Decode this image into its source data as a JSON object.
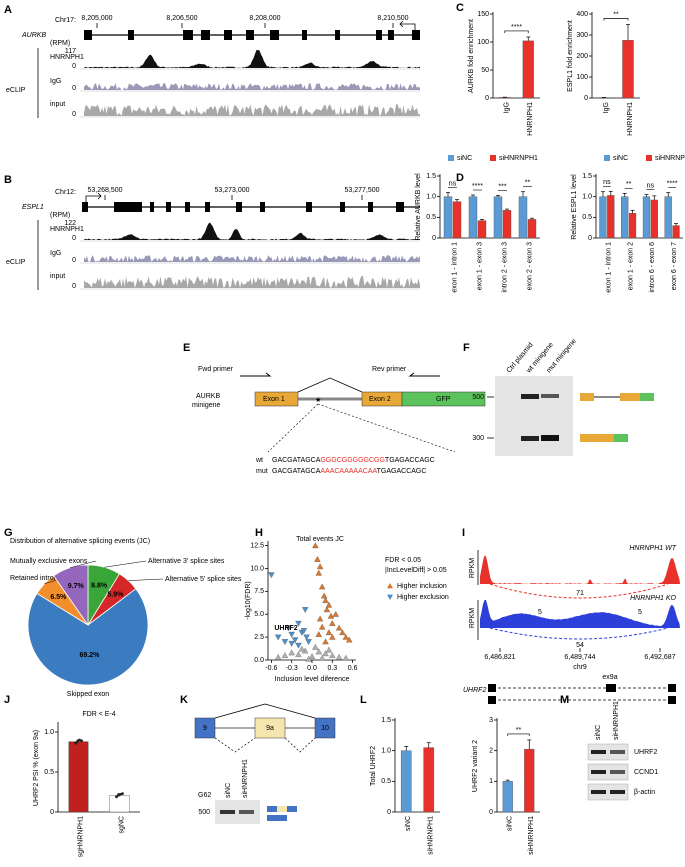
{
  "labels": {
    "a": "A",
    "b": "B",
    "c": "C",
    "d": "D",
    "e": "E",
    "f": "F",
    "g": "G",
    "h": "H",
    "i": "I",
    "j": "J",
    "k": "K",
    "l": "L",
    "m": "M"
  },
  "panel_a": {
    "chrom": "Chr17:",
    "coords": [
      "8,205,000",
      "8,206,500",
      "8,208,000",
      "8,210,500"
    ],
    "gene": "AURKB",
    "unit": "(RPM)",
    "max": "117",
    "zero": "0",
    "group": "eCLIP",
    "tracks": [
      "HNRNPH1",
      "IgG",
      "input"
    ]
  },
  "panel_b": {
    "chrom": "Chr12:",
    "coords": [
      "53,268,500",
      "53,273,000",
      "53,277,500"
    ],
    "gene": "ESPL1",
    "unit": "(RPM)",
    "max": "122",
    "zero": "0",
    "group": "eCLIP",
    "tracks": [
      "HNRNPH1",
      "IgG",
      "input"
    ]
  },
  "panel_e": {
    "fwd": "Fwd primer",
    "rev": "Rev primer",
    "label_lines": [
      "AURKB",
      "minigene"
    ],
    "exons": [
      "Exon 1",
      "Exon 2",
      "GFP"
    ],
    "wt": "wt",
    "mut": "mut",
    "wt_seq": [
      "GACGATAGCA",
      "GGGCGGGGGCGG",
      "TGAGACCAGC"
    ],
    "mut_seq": [
      "GACGATAGCA",
      "AAACAAAAACAA",
      "TGAGACCAGC"
    ]
  },
  "panel_f": {
    "lanes": [
      "Ctrl plasmid",
      "wt minigene",
      "mut minigene"
    ],
    "markers": [
      "500",
      "300"
    ]
  },
  "panel_i": {
    "unit": "RPKM",
    "wt": "HNRNPH1 WT",
    "ko": "HNRNPH1 KO",
    "wt_junction": "71",
    "ko_junctions": [
      "5",
      "5",
      "54"
    ],
    "coords": [
      "6,486,821",
      "6,489,744",
      "6,492,687"
    ],
    "chrom": "chr9",
    "exon": "ex9a",
    "gene": "UHRF2"
  },
  "panel_k": {
    "exons": [
      "9",
      "9a",
      "10"
    ],
    "cell": "G62",
    "marker": "500",
    "lanes": [
      "siNC",
      "siHNRNPH1"
    ]
  },
  "panel_m": {
    "lanes": [
      "siNC",
      "siHNRNPH1"
    ],
    "proteins": [
      "UHRF2",
      "CCND1",
      "β-actin"
    ]
  },
  "chart_data": [
    {
      "type": "bar",
      "ylabel": "AURKB fold enrichment",
      "categories": [
        "IgG",
        "HNRNPH1"
      ],
      "series": [
        {
          "values": [
            1,
            102
          ],
          "errors": [
            0.5,
            7
          ],
          "colors": [
            "#e8312a",
            "#e8312a"
          ]
        }
      ],
      "significance": [
        "****"
      ],
      "ylim": [
        0,
        150
      ],
      "yticks": [
        0,
        50,
        100,
        150
      ]
    },
    {
      "type": "bar",
      "ylabel": "ESPL1 fold enrichment",
      "categories": [
        "IgG",
        "HNRNPH1"
      ],
      "series": [
        {
          "values": [
            2,
            275
          ],
          "errors": [
            1,
            75
          ],
          "colors": [
            "#e8312a",
            "#e8312a"
          ]
        }
      ],
      "significance": [
        "**"
      ],
      "ylim": [
        0,
        400
      ],
      "yticks": [
        0,
        100,
        200,
        300,
        400
      ]
    },
    {
      "type": "bar",
      "ylabel": "Relative AURKB level",
      "categories": [
        "exon 1 - intron 1",
        "exon 1 - exon 3",
        "intron 2 - exon 3",
        "exon 2 - exon 3"
      ],
      "series": [
        {
          "name": "siNC",
          "color": "#5b9bd5",
          "values": [
            1,
            1,
            1,
            1
          ],
          "errors": [
            0.1,
            0.04,
            0.03,
            0.12
          ]
        },
        {
          "name": "siHNRNPH1",
          "color": "#e8312a",
          "values": [
            0.88,
            0.42,
            0.67,
            0.45
          ],
          "errors": [
            0.05,
            0.03,
            0.03,
            0.03
          ]
        }
      ],
      "significance": [
        "ns",
        "****",
        "***",
        "**"
      ],
      "ylim": [
        0,
        1.5
      ],
      "yticks": [
        0,
        0.5,
        {
          "value": 1,
          "label": "1.0"
        },
        1.5
      ]
    },
    {
      "type": "bar",
      "ylabel": "Relative ESPL1 level",
      "categories": [
        "exon 1 - intron 1",
        "exon 1 - exon 2",
        "intron 6 - exon 6",
        "exon 6 - exon 7"
      ],
      "series": [
        {
          "name": "siNC",
          "color": "#5b9bd5",
          "values": [
            1,
            1,
            1,
            1
          ],
          "errors": [
            0.12,
            0.08,
            0.05,
            0.1
          ]
        },
        {
          "name": "siHNRNPH1",
          "color": "#e8312a",
          "values": [
            1.03,
            0.6,
            0.92,
            0.3
          ],
          "errors": [
            0.1,
            0.07,
            0.1,
            0.05
          ]
        }
      ],
      "significance": [
        "ns",
        "**",
        "ns",
        "****"
      ],
      "ylim": [
        0,
        1.5
      ],
      "yticks": [
        0,
        0.5,
        {
          "value": 1,
          "label": "1.0"
        },
        1.5
      ]
    },
    {
      "type": "pie",
      "title": "Distribution of alternative splicing events (JC)",
      "categories": [
        "Alternative 3' splice sites",
        "Alternative 5' splice sites",
        "Skipped exon",
        "Retained intron",
        "Mutually exclusive exons"
      ],
      "values": [
        8.8,
        5.9,
        69.2,
        6.5,
        9.7
      ],
      "value_labels": [
        "8.8%",
        "5.9%",
        "69.2%",
        "6.5%",
        "9.7%"
      ],
      "colors": [
        "#3aa63a",
        "#d62728",
        "#3b7bbf",
        "#f28e2b",
        "#9467bd"
      ]
    },
    {
      "type": "scatter",
      "title": "Total events JC",
      "xlabel": "Inclusion level diference",
      "ylabel": "-log10(FDR)",
      "annotations": [
        "FDR < 0.05",
        "|IncLevelDiff| > 0.05"
      ],
      "highlight": "UHRF2",
      "series": [
        {
          "name": "Higher inclusion",
          "color": "#d9782d",
          "marker": "up",
          "x": [
            0.05,
            0.08,
            0.1,
            0.12,
            0.15,
            0.18,
            0.2,
            0.22,
            0.25,
            0.28,
            0.3,
            0.35,
            0.4,
            0.45,
            0.5,
            0.55,
            0.1,
            0.15,
            0.2,
            0.3,
            0.12,
            0.25
          ],
          "values": [
            12.5,
            11,
            9.5,
            10.2,
            8,
            7,
            6.5,
            5.5,
            6,
            4.8,
            4,
            5,
            3.5,
            3,
            2.5,
            2.2,
            2.8,
            3.6,
            2,
            2.5,
            4.5,
            3
          ]
        },
        {
          "name": "Higher exclusion",
          "color": "#4e8fc7",
          "marker": "down",
          "x": [
            -0.6,
            -0.5,
            -0.4,
            -0.35,
            -0.3,
            -0.25,
            -0.2,
            -0.15,
            -0.12,
            -0.1,
            -0.08,
            -0.05,
            -0.3,
            -0.2
          ],
          "values": [
            9.3,
            2.5,
            2,
            3.5,
            2.8,
            2.2,
            4,
            3,
            3.2,
            5.5,
            2.5,
            2,
            1.8,
            1.6
          ]
        },
        {
          "color": "#b0b0b0",
          "marker": "up",
          "x": [
            -0.5,
            -0.4,
            -0.3,
            -0.2,
            -0.1,
            0,
            0.1,
            0.2,
            0.3,
            0.4,
            0.5,
            -0.15,
            0.05,
            0.15,
            -0.05,
            0.25
          ],
          "values": [
            0.3,
            0.5,
            0.8,
            0.6,
            1,
            0.4,
            0.9,
            0.7,
            0.5,
            0.3,
            0.2,
            1.2,
            1.4,
            0.2,
            0.1,
            1.1
          ]
        }
      ],
      "xlim": [
        -0.65,
        0.65
      ],
      "ylim": [
        0,
        13
      ],
      "xticks": [
        -0.6,
        -0.3,
        {
          "value": 0,
          "label": "0.0"
        },
        0.3,
        0.6
      ],
      "yticks": [
        {
          "value": 0,
          "label": "0.0"
        },
        2.5,
        {
          "value": 5,
          "label": "5.0"
        },
        7.5,
        {
          "value": 10,
          "label": "10.0"
        },
        12.5
      ]
    },
    {
      "type": "bar",
      "ylabel": "UHRF2 PSI % (exon 9a)",
      "annotation": "FDR < E-4",
      "categories": [
        "sgHNRNPH1",
        "sgNC"
      ],
      "series": [
        {
          "values": [
            0.88,
            0.21
          ],
          "errors": [
            0.02,
            0.02
          ],
          "colors": [
            "#c0211d",
            "#ffffff"
          ],
          "points": [
            [
              0.86,
              0.88,
              0.9,
              0.89
            ],
            [
              0.19,
              0.21,
              0.22,
              0.23
            ]
          ]
        }
      ],
      "ylim": [
        0,
        1.1
      ],
      "yticks": [
        0,
        0.5,
        {
          "value": 1,
          "label": "1.0"
        }
      ]
    },
    {
      "type": "bar",
      "ylabel": "Total UHRF2",
      "categories": [
        "siNC",
        "siHNRNPH1"
      ],
      "series": [
        {
          "values": [
            1,
            1.05
          ],
          "errors": [
            0.07,
            0.08
          ],
          "colors": [
            "#5b9bd5",
            "#e8312a"
          ]
        }
      ],
      "ylim": [
        0,
        1.5
      ],
      "yticks": [
        0,
        0.5,
        {
          "value": 1,
          "label": "1.0"
        },
        1.5
      ]
    },
    {
      "type": "bar",
      "ylabel": "UHRF2 variant 2",
      "categories": [
        "siNC",
        "siHNRNPH1"
      ],
      "series": [
        {
          "values": [
            1,
            2.05
          ],
          "errors": [
            0.04,
            0.3
          ],
          "colors": [
            "#5b9bd5",
            "#e8312a"
          ]
        }
      ],
      "significance": [
        "**"
      ],
      "ylim": [
        0,
        3
      ],
      "yticks": [
        0,
        1,
        2,
        3
      ]
    }
  ]
}
